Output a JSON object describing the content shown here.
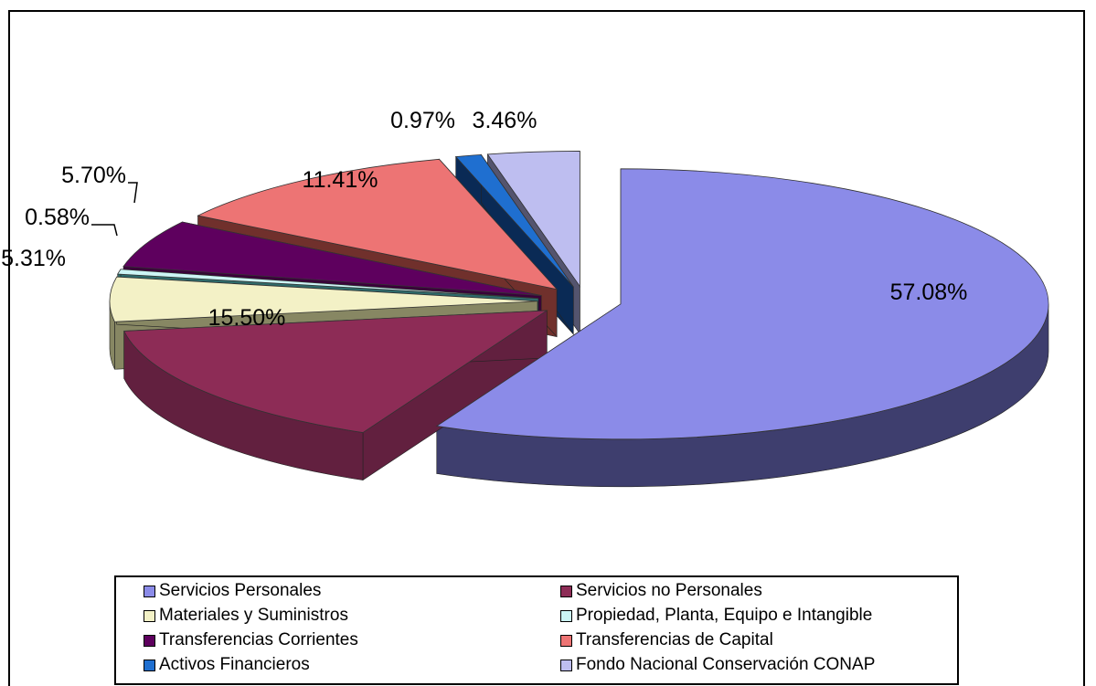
{
  "chart_data": {
    "type": "pie",
    "title": "",
    "series": [
      {
        "name": "Servicios Personales",
        "value": 57.08,
        "label": "57.08%",
        "color": "#8b8be8",
        "side": "#3e3e6e"
      },
      {
        "name": "Servicios no Personales",
        "value": 15.5,
        "label": "15.50%",
        "color": "#8d2c56",
        "side": "#62203f"
      },
      {
        "name": "Materiales y Suministros",
        "value": 5.31,
        "label": "5.31%",
        "color": "#f3f1c6",
        "side": "#878763"
      },
      {
        "name": "Propiedad, Planta, Equipo e Intangible",
        "value": 0.58,
        "label": "0.58%",
        "color": "#ccf5f5",
        "side": "#2e6a6a"
      },
      {
        "name": "Transferencias Corrientes",
        "value": 5.7,
        "label": "5.70%",
        "color": "#5e005e",
        "side": "#3a003a"
      },
      {
        "name": "Transferencias de Capital",
        "value": 11.41,
        "label": "11.41%",
        "color": "#ed7474",
        "side": "#70302c"
      },
      {
        "name": "Activos Financieros",
        "value": 0.97,
        "label": "0.97%",
        "color": "#1f6fd0",
        "side": "#0a2a55"
      },
      {
        "name": "Fondo Nacional Conservación CONAP",
        "value": 3.46,
        "label": "3.46%",
        "color": "#bebef0",
        "side": "#54546e"
      }
    ],
    "legend_position": "bottom"
  }
}
